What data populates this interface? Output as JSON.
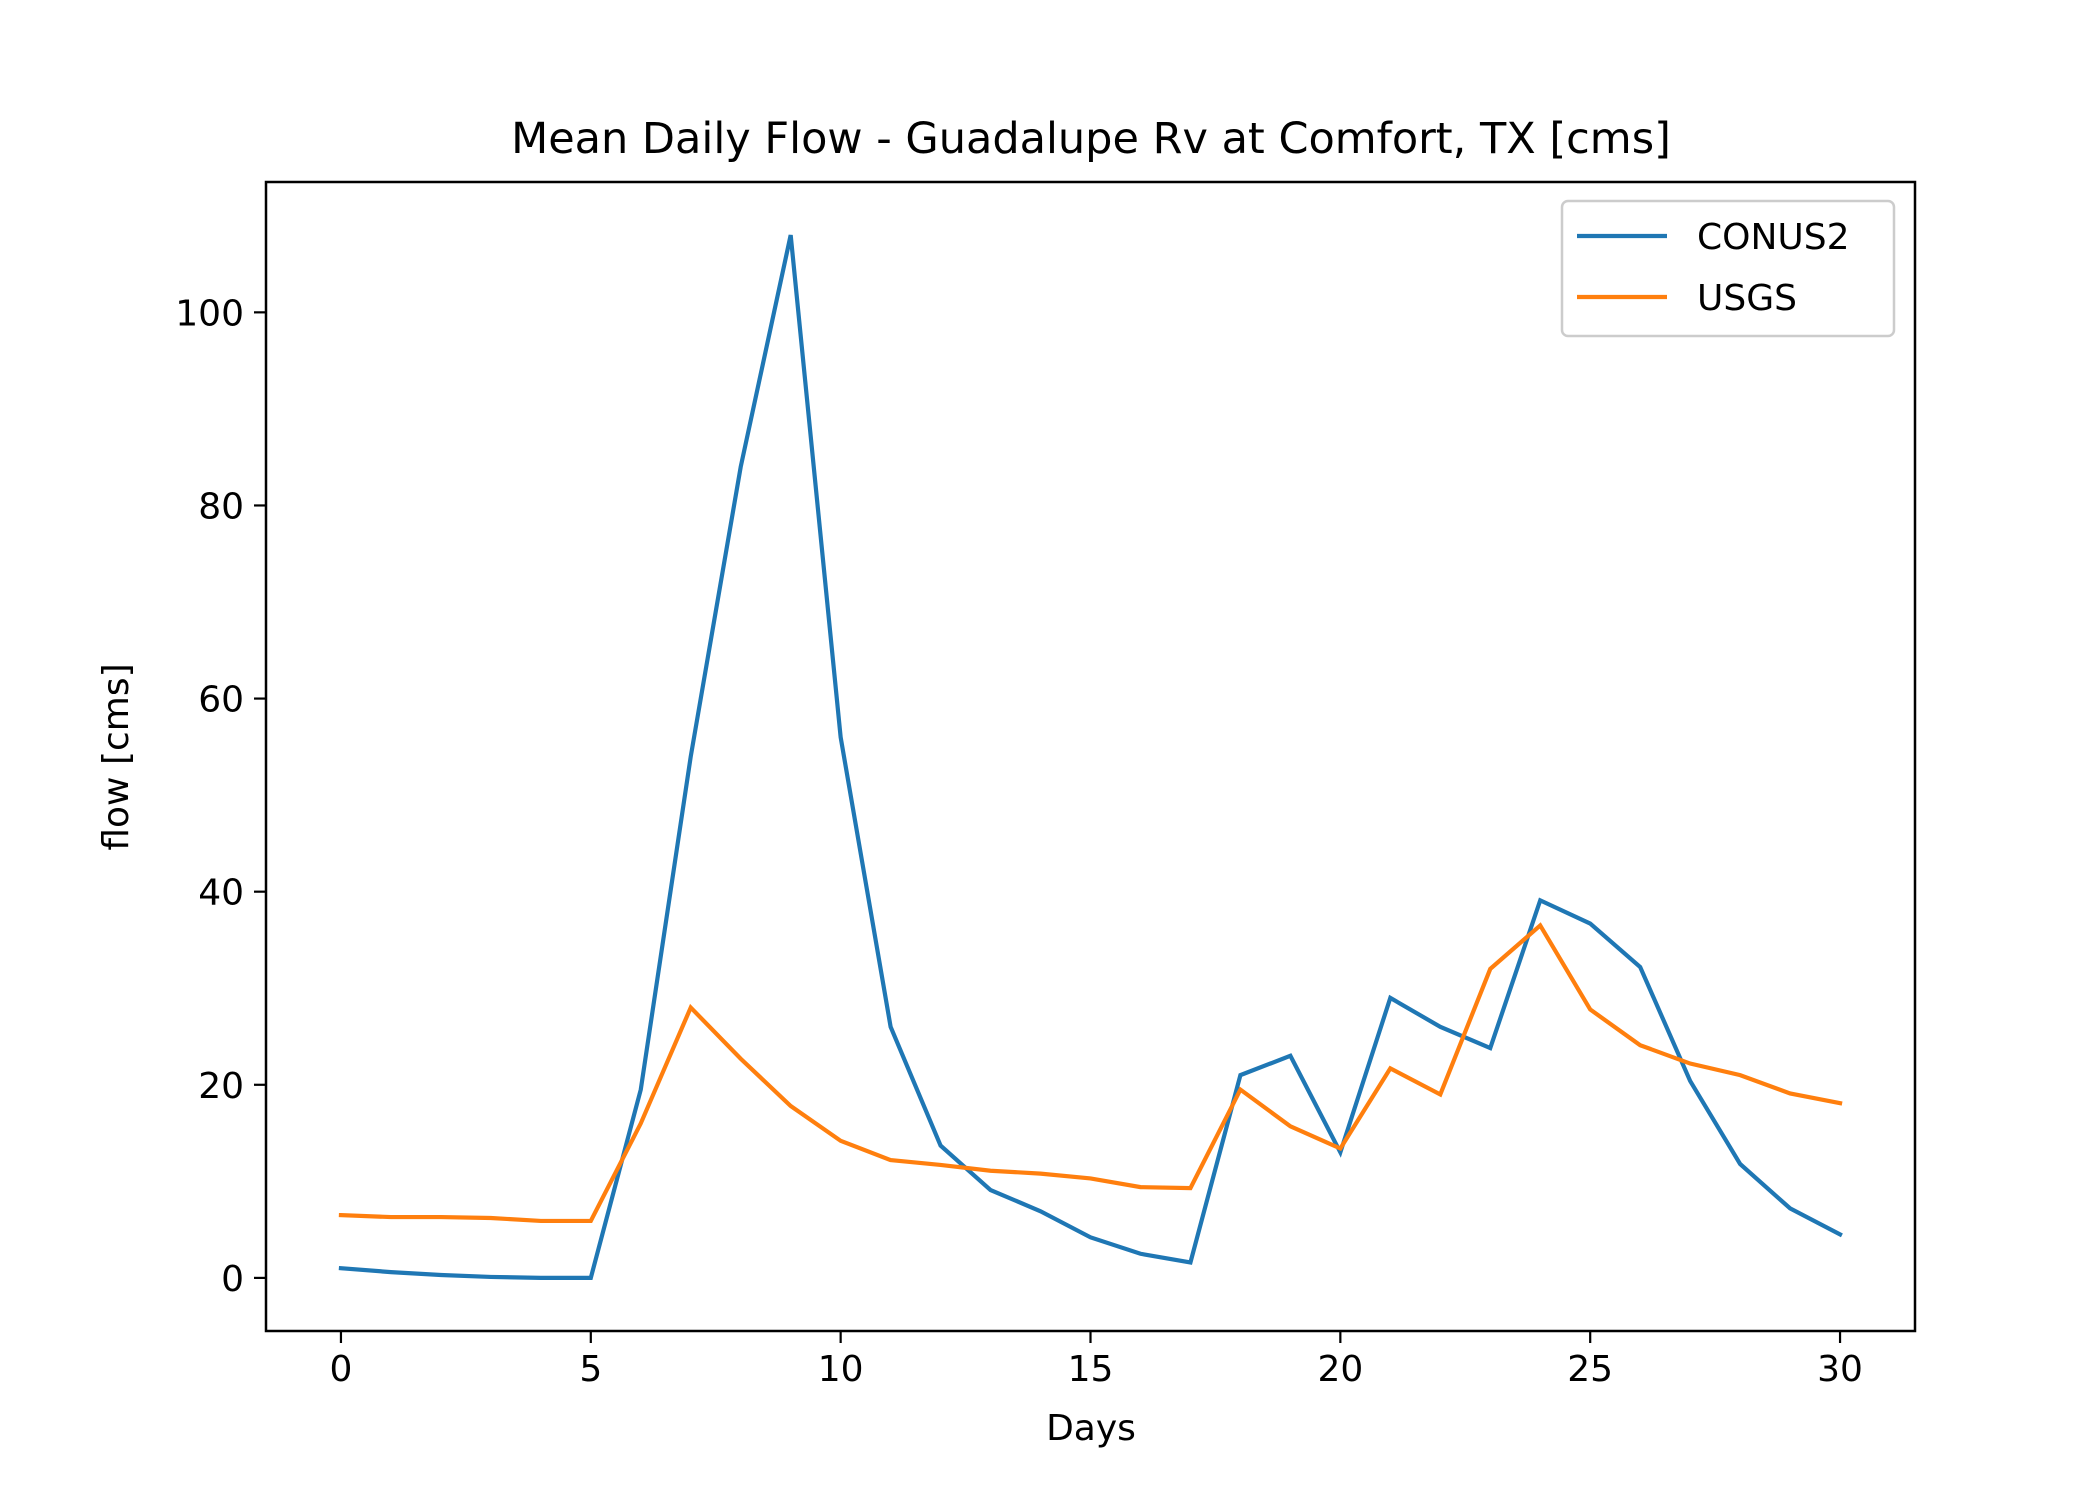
{
  "chart_data": {
    "type": "line",
    "title": "Mean Daily Flow - Guadalupe Rv at Comfort, TX [cms]",
    "xlabel": "Days",
    "ylabel": "flow [cms]",
    "xlim": [
      -1.5,
      31.5
    ],
    "ylim": [
      -5.5,
      113.5
    ],
    "xticks": [
      0,
      5,
      10,
      15,
      20,
      25,
      30
    ],
    "xtick_labels": [
      "0",
      "5",
      "10",
      "15",
      "20",
      "25",
      "30"
    ],
    "yticks": [
      0,
      20,
      40,
      60,
      80,
      100
    ],
    "ytick_labels": [
      "0",
      "20",
      "40",
      "60",
      "80",
      "100"
    ],
    "grid": false,
    "legend_position": "top-right",
    "x": [
      0,
      1,
      2,
      3,
      4,
      5,
      6,
      7,
      8,
      9,
      10,
      11,
      12,
      13,
      14,
      15,
      16,
      17,
      18,
      19,
      20,
      21,
      22,
      23,
      24,
      25,
      26,
      27,
      28,
      29,
      30
    ],
    "series": [
      {
        "name": "CONUS2",
        "color": "#1f77b4",
        "values": [
          1.0,
          0.6,
          0.3,
          0.1,
          0.0,
          0.0,
          19.5,
          54.0,
          84.0,
          108.0,
          56.0,
          26.0,
          13.7,
          9.1,
          6.9,
          4.2,
          2.5,
          1.6,
          21.0,
          23.0,
          13.0,
          29.0,
          26.0,
          23.8,
          39.1,
          36.7,
          32.2,
          20.4,
          11.8,
          7.2,
          4.5
        ]
      },
      {
        "name": "USGS",
        "color": "#ff7f0e",
        "values": [
          6.5,
          6.3,
          6.3,
          6.2,
          5.9,
          5.9,
          16.0,
          28.0,
          22.7,
          17.8,
          14.2,
          12.2,
          11.7,
          11.1,
          10.8,
          10.3,
          9.4,
          9.3,
          19.5,
          15.7,
          13.4,
          21.7,
          19.0,
          32.0,
          36.5,
          27.8,
          24.1,
          22.2,
          21.0,
          19.1,
          18.1
        ]
      }
    ]
  }
}
